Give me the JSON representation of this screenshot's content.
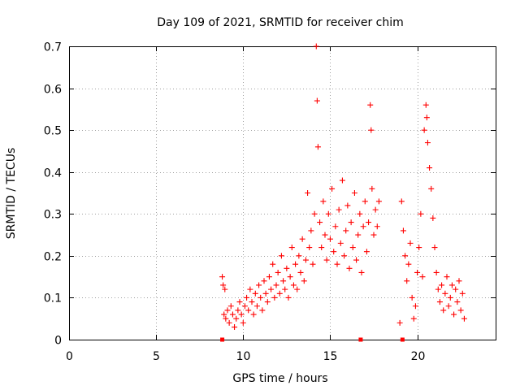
{
  "colors": {
    "series": "#ff0000",
    "axis": "#000000",
    "grid": "#a0a0a0",
    "background": "#ffffff"
  },
  "chart_data": {
    "type": "scatter",
    "title": "Day 109 of 2021, SRMTID for receiver chim",
    "xlabel": "GPS time / hours",
    "ylabel": "SRMTID / TECUs",
    "xlim": [
      0,
      24.5
    ],
    "ylim": [
      0,
      0.7
    ],
    "xticks": [
      0,
      5,
      10,
      15,
      20
    ],
    "yticks": [
      0,
      0.1,
      0.2,
      0.3,
      0.4,
      0.5,
      0.6,
      0.7
    ],
    "xtick_labels": [
      "0",
      "5",
      "10",
      "15",
      "20"
    ],
    "ytick_labels": [
      "0",
      "0.1",
      "0.2",
      "0.3",
      "0.4",
      "0.5",
      "0.6",
      "0.7"
    ],
    "grid": true,
    "legend": "none",
    "marker": "+",
    "series": [
      {
        "name": "SRMTID",
        "x": [
          8.8,
          8.85,
          8.9,
          8.95,
          9.0,
          9.1,
          9.2,
          9.3,
          9.4,
          9.5,
          9.6,
          9.7,
          9.8,
          9.9,
          10.0,
          10.1,
          10.2,
          10.3,
          10.4,
          10.5,
          10.6,
          10.7,
          10.8,
          10.9,
          11.0,
          11.1,
          11.2,
          11.3,
          11.4,
          11.5,
          11.6,
          11.7,
          11.8,
          11.9,
          12.0,
          12.1,
          12.2,
          12.3,
          12.4,
          12.5,
          12.6,
          12.7,
          12.8,
          12.9,
          13.0,
          13.1,
          13.2,
          13.3,
          13.4,
          13.5,
          13.6,
          13.7,
          13.8,
          13.9,
          14.0,
          14.1,
          14.2,
          14.25,
          14.3,
          14.4,
          14.5,
          14.6,
          14.7,
          14.8,
          14.9,
          15.0,
          15.1,
          15.2,
          15.3,
          15.4,
          15.5,
          15.6,
          15.7,
          15.8,
          15.9,
          16.0,
          16.1,
          16.2,
          16.3,
          16.4,
          16.5,
          16.6,
          16.7,
          16.8,
          16.9,
          17.0,
          17.1,
          17.2,
          17.3,
          17.35,
          17.4,
          17.5,
          17.6,
          17.7,
          17.8,
          19.0,
          19.1,
          19.2,
          19.3,
          19.4,
          19.5,
          19.6,
          19.7,
          19.8,
          19.9,
          20.0,
          20.1,
          20.2,
          20.3,
          20.4,
          20.5,
          20.55,
          20.6,
          20.7,
          20.8,
          20.9,
          21.0,
          21.1,
          21.2,
          21.3,
          21.4,
          21.5,
          21.6,
          21.7,
          21.8,
          21.9,
          22.0,
          22.1,
          22.2,
          22.3,
          22.4,
          22.5,
          22.6,
          22.7
        ],
        "y": [
          0.15,
          0.13,
          0.06,
          0.12,
          0.05,
          0.07,
          0.04,
          0.08,
          0.06,
          0.03,
          0.05,
          0.07,
          0.09,
          0.06,
          0.04,
          0.08,
          0.1,
          0.07,
          0.12,
          0.09,
          0.06,
          0.11,
          0.08,
          0.13,
          0.1,
          0.07,
          0.14,
          0.11,
          0.09,
          0.15,
          0.12,
          0.18,
          0.1,
          0.13,
          0.16,
          0.11,
          0.2,
          0.14,
          0.12,
          0.17,
          0.1,
          0.15,
          0.22,
          0.13,
          0.18,
          0.12,
          0.2,
          0.16,
          0.24,
          0.14,
          0.19,
          0.35,
          0.22,
          0.26,
          0.18,
          0.3,
          0.7,
          0.57,
          0.46,
          0.28,
          0.22,
          0.33,
          0.25,
          0.19,
          0.3,
          0.24,
          0.36,
          0.21,
          0.27,
          0.18,
          0.31,
          0.23,
          0.38,
          0.2,
          0.26,
          0.32,
          0.17,
          0.28,
          0.22,
          0.35,
          0.19,
          0.25,
          0.3,
          0.16,
          0.27,
          0.33,
          0.21,
          0.28,
          0.56,
          0.5,
          0.36,
          0.25,
          0.31,
          0.27,
          0.33,
          0.04,
          0.33,
          0.26,
          0.2,
          0.14,
          0.18,
          0.23,
          0.1,
          0.05,
          0.08,
          0.16,
          0.22,
          0.3,
          0.15,
          0.5,
          0.56,
          0.53,
          0.47,
          0.41,
          0.36,
          0.29,
          0.22,
          0.16,
          0.12,
          0.09,
          0.13,
          0.07,
          0.11,
          0.15,
          0.08,
          0.1,
          0.13,
          0.06,
          0.12,
          0.09,
          0.14,
          0.07,
          0.11,
          0.05
        ]
      }
    ]
  }
}
